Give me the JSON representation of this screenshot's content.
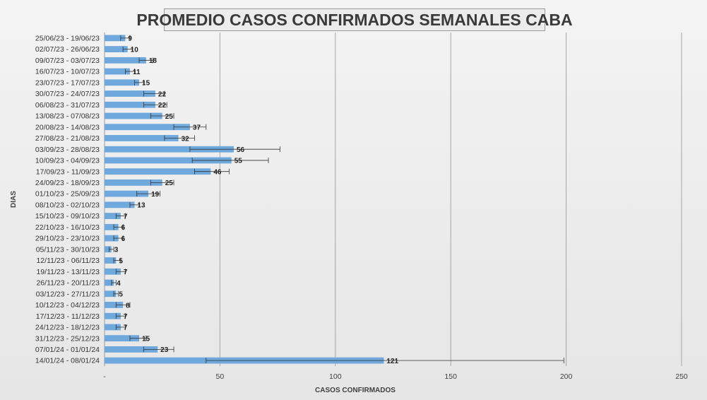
{
  "chart_data": {
    "type": "bar",
    "orientation": "horizontal",
    "title": "PROMEDIO CASOS CONFIRMADOS SEMANALES CABA",
    "xlabel": "CASOS CONFIRMADOS",
    "ylabel": "DIAS",
    "xlim": [
      0,
      250
    ],
    "xticks": [
      0,
      50,
      100,
      150,
      200,
      250
    ],
    "xtick_labels": [
      "-",
      "50",
      "100",
      "150",
      "200",
      "250"
    ],
    "grid": true,
    "legend": "none",
    "error_bars": true,
    "bar_color": "#6fa8dc",
    "categories": [
      "25/06/23 - 19/06/23",
      "02/07/23 - 26/06/23",
      "09/07/23 - 03/07/23",
      "16/07/23 - 10/07/23",
      "23/07/23 - 17/07/23",
      "30/07/23 - 24/07/23",
      "06/08/23 - 31/07/23",
      "13/08/23 - 07/08/23",
      "20/08/23 - 14/08/23",
      "27/08/23 - 21/08/23",
      "03/09/23 - 28/08/23",
      "10/09/23 - 04/09/23",
      "17/09/23 - 11/09/23",
      "24/09/23 - 18/09/23",
      "01/10/23 - 25/09/23",
      "08/10/23 - 02/10/23",
      "15/10/23 - 09/10/23",
      "22/10/23 - 16/10/23",
      "29/10/23 - 23/10/23",
      "05/11/23 - 30/10/23",
      "12/11/23 - 06/11/23",
      "19/11/23 - 13/11/23",
      "26/11/23 - 20/11/23",
      "03/12/23 - 27/11/23",
      "10/12/23 - 04/12/23",
      "17/12/23 - 11/12/23",
      "24/12/23 - 18/12/23",
      "31/12/23 - 25/12/23",
      "07/01/24 - 01/01/24",
      "14/01/24 - 08/01/24"
    ],
    "values": [
      9,
      10,
      18,
      11,
      15,
      22,
      22,
      25,
      37,
      32,
      56,
      55,
      46,
      25,
      19,
      13,
      7,
      6,
      6,
      3,
      5,
      7,
      4,
      5,
      8,
      7,
      7,
      15,
      23,
      121
    ],
    "error_low": [
      7,
      8,
      15,
      9,
      13,
      17,
      17,
      20,
      30,
      26,
      37,
      38,
      39,
      20,
      14,
      11,
      5,
      4,
      4,
      2,
      4,
      5,
      3,
      4,
      5,
      5,
      5,
      11,
      17,
      44
    ],
    "error_high": [
      11,
      12,
      21,
      13,
      17,
      26,
      27,
      30,
      44,
      39,
      76,
      71,
      54,
      30,
      24,
      15,
      9,
      8,
      8,
      4,
      7,
      9,
      5,
      6,
      11,
      9,
      9,
      18,
      30,
      199
    ]
  }
}
